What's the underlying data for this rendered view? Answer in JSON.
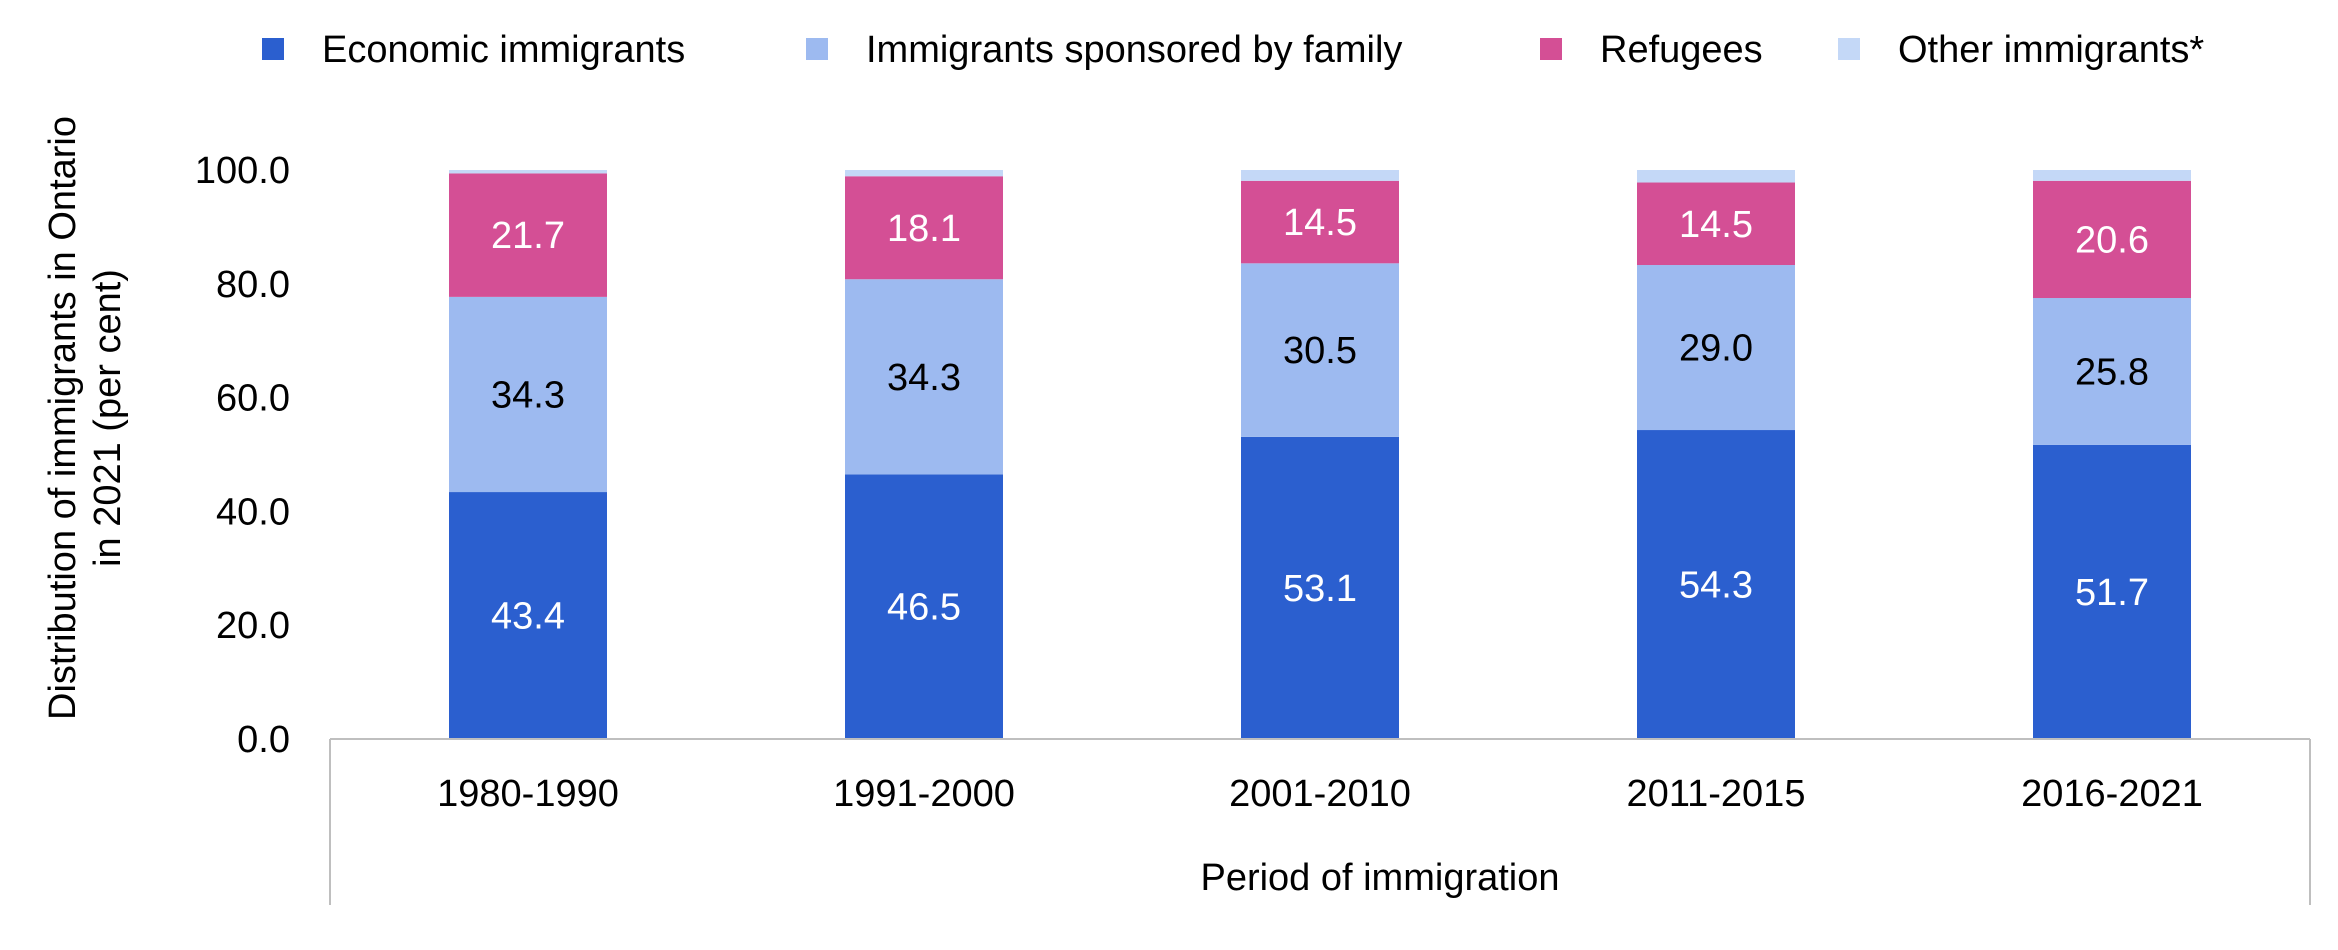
{
  "chart_data": {
    "type": "bar",
    "stacked": true,
    "title": "",
    "xlabel": "Period of immigration",
    "ylabel_lines": [
      "Distribution of immigrants in Ontario",
      "in 2021 (per cent)"
    ],
    "ylim": [
      0,
      100
    ],
    "yticks": [
      "0.0",
      "20.0",
      "40.0",
      "60.0",
      "80.0",
      "100.0"
    ],
    "grid": false,
    "legend_position": "top",
    "categories": [
      "1980-1990",
      "1991-2000",
      "2001-2010",
      "2011-2015",
      "2016-2021"
    ],
    "series": [
      {
        "name": "Economic immigrants",
        "color": "#2b5fcf",
        "label_color": "#ffffff",
        "values": [
          43.4,
          46.5,
          53.1,
          54.3,
          51.7
        ],
        "labels": [
          "43.4",
          "46.5",
          "53.1",
          "54.3",
          "51.7"
        ]
      },
      {
        "name": "Immigrants sponsored by family",
        "color": "#9dbaf0",
        "label_color": "#000000",
        "values": [
          34.3,
          34.3,
          30.5,
          29.0,
          25.8
        ],
        "labels": [
          "34.3",
          "34.3",
          "30.5",
          "29.0",
          "25.8"
        ]
      },
      {
        "name": "Refugees",
        "color": "#d44f95",
        "label_color": "#ffffff",
        "values": [
          21.7,
          18.1,
          14.5,
          14.5,
          20.6
        ],
        "labels": [
          "21.7",
          "18.1",
          "14.5",
          "14.5",
          "20.6"
        ]
      },
      {
        "name": "Other immigrants*",
        "color": "#c4d8f7",
        "label_color": "#000000",
        "values": [
          0.6,
          1.1,
          1.9,
          2.2,
          1.9
        ],
        "labels": []
      }
    ]
  }
}
